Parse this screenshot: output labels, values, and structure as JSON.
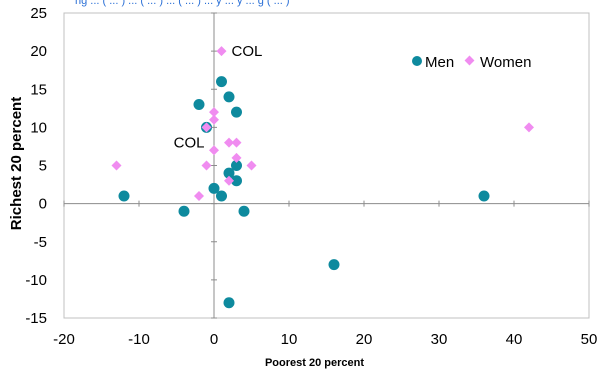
{
  "chart_data": {
    "type": "scatter",
    "title": "",
    "xlabel": "Poorest 20 percent",
    "ylabel": "Richest 20 percent",
    "xlim": [
      -20,
      50
    ],
    "ylim": [
      -15,
      25
    ],
    "xticks": [
      -20,
      -10,
      0,
      10,
      20,
      30,
      40,
      50
    ],
    "yticks": [
      -15,
      -10,
      -5,
      0,
      5,
      10,
      15,
      20,
      25
    ],
    "xtick_labels": [
      "-20",
      "-10",
      "0",
      "10",
      "20",
      "30",
      "40",
      "50"
    ],
    "ytick_labels": [
      "-15",
      "-10",
      "-5",
      "0",
      "5",
      "10",
      "15",
      "20",
      "25"
    ],
    "grid": false,
    "legend_position": "top-right",
    "series": [
      {
        "name": "Men",
        "color": "#0e8a9e",
        "marker": "circle",
        "points": [
          {
            "x": 1,
            "y": 16
          },
          {
            "x": -2,
            "y": 13
          },
          {
            "x": 2,
            "y": 14
          },
          {
            "x": 3,
            "y": 12
          },
          {
            "x": -1,
            "y": 10
          },
          {
            "x": 3,
            "y": 5
          },
          {
            "x": 2,
            "y": 4
          },
          {
            "x": 3,
            "y": 3
          },
          {
            "x": 0,
            "y": 2
          },
          {
            "x": 1,
            "y": 1
          },
          {
            "x": -12,
            "y": 1
          },
          {
            "x": -4,
            "y": -1
          },
          {
            "x": 4,
            "y": -1
          },
          {
            "x": 36,
            "y": 1
          },
          {
            "x": 16,
            "y": -8
          },
          {
            "x": 2,
            "y": -13
          }
        ]
      },
      {
        "name": "Women",
        "color": "#f08cf0",
        "marker": "diamond",
        "points": [
          {
            "x": 1,
            "y": 20
          },
          {
            "x": 0,
            "y": 12
          },
          {
            "x": 0,
            "y": 11
          },
          {
            "x": -1,
            "y": 10
          },
          {
            "x": 2,
            "y": 8
          },
          {
            "x": 3,
            "y": 8
          },
          {
            "x": 0,
            "y": 7
          },
          {
            "x": 3,
            "y": 6
          },
          {
            "x": -1,
            "y": 5
          },
          {
            "x": 5,
            "y": 5
          },
          {
            "x": -13,
            "y": 5
          },
          {
            "x": 2,
            "y": 3
          },
          {
            "x": -2,
            "y": 1
          },
          {
            "x": 42,
            "y": 10
          }
        ]
      }
    ],
    "annotations": [
      {
        "text": "COL",
        "x": 1,
        "y": 20,
        "anchor": "right-of-point"
      },
      {
        "text": "COL",
        "x": -1,
        "y": 10,
        "anchor": "below-left-of-point"
      }
    ]
  }
}
